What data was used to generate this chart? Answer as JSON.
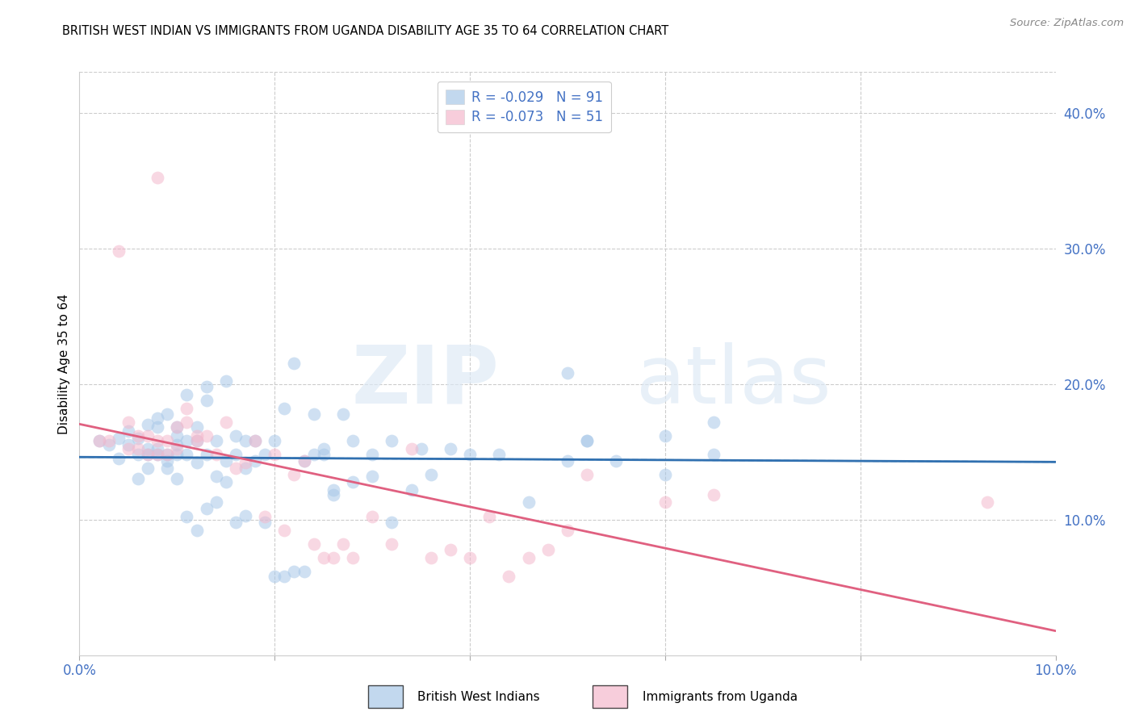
{
  "title": "BRITISH WEST INDIAN VS IMMIGRANTS FROM UGANDA DISABILITY AGE 35 TO 64 CORRELATION CHART",
  "source": "Source: ZipAtlas.com",
  "ylabel": "Disability Age 35 to 64",
  "xlim": [
    0.0,
    0.1
  ],
  "ylim": [
    0.0,
    0.43
  ],
  "legend_label1": "British West Indians",
  "legend_label2": "Immigrants from Uganda",
  "color_blue": "#a8c8e8",
  "color_pink": "#f4b8cc",
  "color_blue_line": "#3070b0",
  "color_blue_dash": "#90b8d8",
  "color_pink_line": "#e06080",
  "color_axis_label": "#4472C4",
  "blue_x": [
    0.002,
    0.003,
    0.004,
    0.004,
    0.005,
    0.005,
    0.006,
    0.006,
    0.006,
    0.007,
    0.007,
    0.007,
    0.007,
    0.008,
    0.008,
    0.008,
    0.008,
    0.009,
    0.009,
    0.009,
    0.009,
    0.01,
    0.01,
    0.01,
    0.01,
    0.011,
    0.011,
    0.011,
    0.012,
    0.012,
    0.012,
    0.013,
    0.013,
    0.013,
    0.014,
    0.014,
    0.015,
    0.015,
    0.016,
    0.016,
    0.017,
    0.017,
    0.018,
    0.019,
    0.02,
    0.021,
    0.022,
    0.023,
    0.024,
    0.025,
    0.026,
    0.027,
    0.028,
    0.03,
    0.032,
    0.034,
    0.036,
    0.038,
    0.04,
    0.043,
    0.046,
    0.05,
    0.052,
    0.055,
    0.06,
    0.065,
    0.05,
    0.052,
    0.06,
    0.065,
    0.01,
    0.011,
    0.012,
    0.013,
    0.014,
    0.015,
    0.016,
    0.017,
    0.018,
    0.019,
    0.02,
    0.021,
    0.022,
    0.023,
    0.024,
    0.025,
    0.026,
    0.028,
    0.03,
    0.032,
    0.035
  ],
  "blue_y": [
    0.158,
    0.155,
    0.145,
    0.16,
    0.155,
    0.165,
    0.13,
    0.148,
    0.16,
    0.138,
    0.148,
    0.152,
    0.17,
    0.148,
    0.152,
    0.168,
    0.175,
    0.138,
    0.143,
    0.148,
    0.178,
    0.155,
    0.162,
    0.13,
    0.168,
    0.148,
    0.158,
    0.192,
    0.142,
    0.158,
    0.168,
    0.148,
    0.188,
    0.198,
    0.132,
    0.158,
    0.143,
    0.202,
    0.148,
    0.162,
    0.138,
    0.158,
    0.143,
    0.148,
    0.158,
    0.182,
    0.215,
    0.143,
    0.178,
    0.148,
    0.122,
    0.178,
    0.158,
    0.148,
    0.158,
    0.122,
    0.133,
    0.152,
    0.148,
    0.148,
    0.113,
    0.143,
    0.158,
    0.143,
    0.133,
    0.148,
    0.208,
    0.158,
    0.162,
    0.172,
    0.148,
    0.102,
    0.092,
    0.108,
    0.113,
    0.128,
    0.098,
    0.103,
    0.158,
    0.098,
    0.058,
    0.058,
    0.062,
    0.062,
    0.148,
    0.152,
    0.118,
    0.128,
    0.132,
    0.098,
    0.152
  ],
  "pink_x": [
    0.002,
    0.003,
    0.004,
    0.005,
    0.005,
    0.006,
    0.006,
    0.007,
    0.007,
    0.008,
    0.008,
    0.009,
    0.009,
    0.01,
    0.01,
    0.011,
    0.011,
    0.012,
    0.012,
    0.013,
    0.014,
    0.015,
    0.016,
    0.017,
    0.018,
    0.019,
    0.02,
    0.021,
    0.022,
    0.023,
    0.024,
    0.025,
    0.026,
    0.027,
    0.028,
    0.03,
    0.032,
    0.034,
    0.036,
    0.038,
    0.04,
    0.042,
    0.044,
    0.046,
    0.048,
    0.05,
    0.052,
    0.06,
    0.065,
    0.008,
    0.093
  ],
  "pink_y": [
    0.158,
    0.158,
    0.298,
    0.152,
    0.172,
    0.162,
    0.152,
    0.162,
    0.148,
    0.148,
    0.158,
    0.148,
    0.158,
    0.152,
    0.168,
    0.172,
    0.182,
    0.158,
    0.162,
    0.162,
    0.148,
    0.172,
    0.138,
    0.142,
    0.158,
    0.102,
    0.148,
    0.092,
    0.133,
    0.143,
    0.082,
    0.072,
    0.072,
    0.082,
    0.072,
    0.102,
    0.082,
    0.152,
    0.072,
    0.078,
    0.072,
    0.102,
    0.058,
    0.072,
    0.078,
    0.092,
    0.133,
    0.113,
    0.118,
    0.352,
    0.113
  ]
}
